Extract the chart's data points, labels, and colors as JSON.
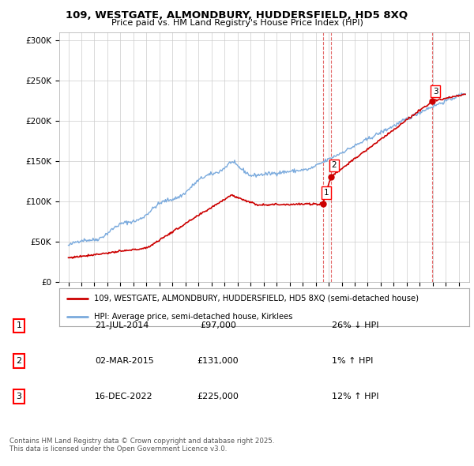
{
  "title_line1": "109, WESTGATE, ALMONDBURY, HUDDERSFIELD, HD5 8XQ",
  "title_line2": "Price paid vs. HM Land Registry's House Price Index (HPI)",
  "ylim": [
    0,
    310000
  ],
  "yticks": [
    0,
    50000,
    100000,
    150000,
    200000,
    250000,
    300000
  ],
  "hpi_color": "#7aaadd",
  "property_color": "#cc0000",
  "sale_marker_color": "#cc0000",
  "vline_color": "#dd4444",
  "legend_label_property": "109, WESTGATE, ALMONDBURY, HUDDERSFIELD, HD5 8XQ (semi-detached house)",
  "legend_label_hpi": "HPI: Average price, semi-detached house, Kirklees",
  "table_rows": [
    {
      "num": "1",
      "date": "21-JUL-2014",
      "price": "£97,000",
      "hpi": "26% ↓ HPI"
    },
    {
      "num": "2",
      "date": "02-MAR-2015",
      "price": "£131,000",
      "hpi": "1% ↑ HPI"
    },
    {
      "num": "3",
      "date": "16-DEC-2022",
      "price": "£225,000",
      "hpi": "12% ↑ HPI"
    }
  ],
  "sale_points": [
    {
      "date_num": 2014.55,
      "price": 97000,
      "label": "1"
    },
    {
      "date_num": 2015.17,
      "price": 131000,
      "label": "2"
    },
    {
      "date_num": 2022.96,
      "price": 225000,
      "label": "3"
    }
  ],
  "vlines": [
    2014.55,
    2015.17,
    2022.96
  ],
  "footnote": "Contains HM Land Registry data © Crown copyright and database right 2025.\nThis data is licensed under the Open Government Licence v3.0.",
  "background_color": "#ffffff",
  "grid_color": "#cccccc",
  "xlim_left": 1994.3,
  "xlim_right": 2025.8,
  "xstart": 1995,
  "xend": 2025
}
